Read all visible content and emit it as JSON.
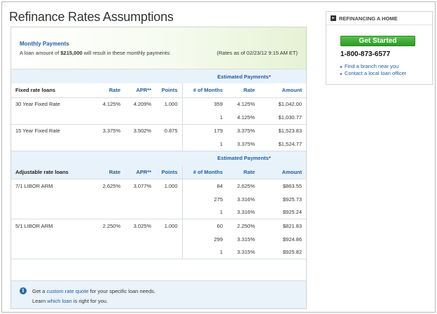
{
  "page": {
    "title": "Refinance Rates Assumptions"
  },
  "summary": {
    "title": "Monthly Payments",
    "text_prefix": "A loan amount of ",
    "loan_amount": "$215,000",
    "text_suffix": " will result in these monthly payments:",
    "rates_date": "(Rates as of 02/23/12 9:15 AM ET)"
  },
  "fixed": {
    "estimated_label": "Estimated Payments*",
    "headers": [
      "Fixed rate loans",
      "Rate",
      "APR**",
      "Points",
      "# of Months",
      "Rate",
      "Amount"
    ],
    "loans": [
      {
        "name": "30 Year Fixed Rate",
        "rate": "4.125%",
        "apr": "4.209%",
        "points": "1.000",
        "payments": [
          {
            "months": "359",
            "rate": "4.125%",
            "amount": "$1,042.00"
          },
          {
            "months": "1",
            "rate": "4.125%",
            "amount": "$1,030.77"
          }
        ]
      },
      {
        "name": "15 Year Fixed Rate",
        "rate": "3.375%",
        "apr": "3.502%",
        "points": "0.875",
        "payments": [
          {
            "months": "179",
            "rate": "3.375%",
            "amount": "$1,523.83"
          },
          {
            "months": "1",
            "rate": "3.375%",
            "amount": "$1,524.77"
          }
        ]
      }
    ]
  },
  "adjustable": {
    "estimated_label": "Estimated Payments*",
    "headers": [
      "Adjustable rate loans",
      "Rate",
      "APR**",
      "Points",
      "# of Months",
      "Rate",
      "Amount"
    ],
    "loans": [
      {
        "name": "7/1 LIBOR ARM",
        "rate": "2.625%",
        "apr": "3.077%",
        "points": "1.000",
        "payments": [
          {
            "months": "84",
            "rate": "2.625%",
            "amount": "$863.55"
          },
          {
            "months": "275",
            "rate": "3.316%",
            "amount": "$925.73"
          },
          {
            "months": "1",
            "rate": "3.316%",
            "amount": "$925.24"
          }
        ]
      },
      {
        "name": "5/1 LIBOR ARM",
        "rate": "2.250%",
        "apr": "3.025%",
        "points": "1.000",
        "payments": [
          {
            "months": "60",
            "rate": "2.250%",
            "amount": "$821.83"
          },
          {
            "months": "299",
            "rate": "3.315%",
            "amount": "$924.86"
          },
          {
            "months": "1",
            "rate": "3.315%",
            "amount": "$925.82"
          }
        ]
      }
    ]
  },
  "info": {
    "icon": "info-icon",
    "line1_prefix": "Get a ",
    "line1_link": "custom rate quote",
    "line1_suffix": " for your specific loan needs.",
    "line2_prefix": "Learn ",
    "line2_link": "which loan",
    "line2_suffix": " is right for you."
  },
  "sidebar": {
    "icon": "arrow-icon",
    "title": "REFINANCING A HOME",
    "cta_label": "Get Started",
    "phone": "1-800-873-6577",
    "links": [
      "Find a branch near you",
      "Contact a local loan officer"
    ]
  },
  "colors": {
    "accent": "#1f5fa0",
    "cta": "#3aa832",
    "band": "#e8f2fb"
  }
}
